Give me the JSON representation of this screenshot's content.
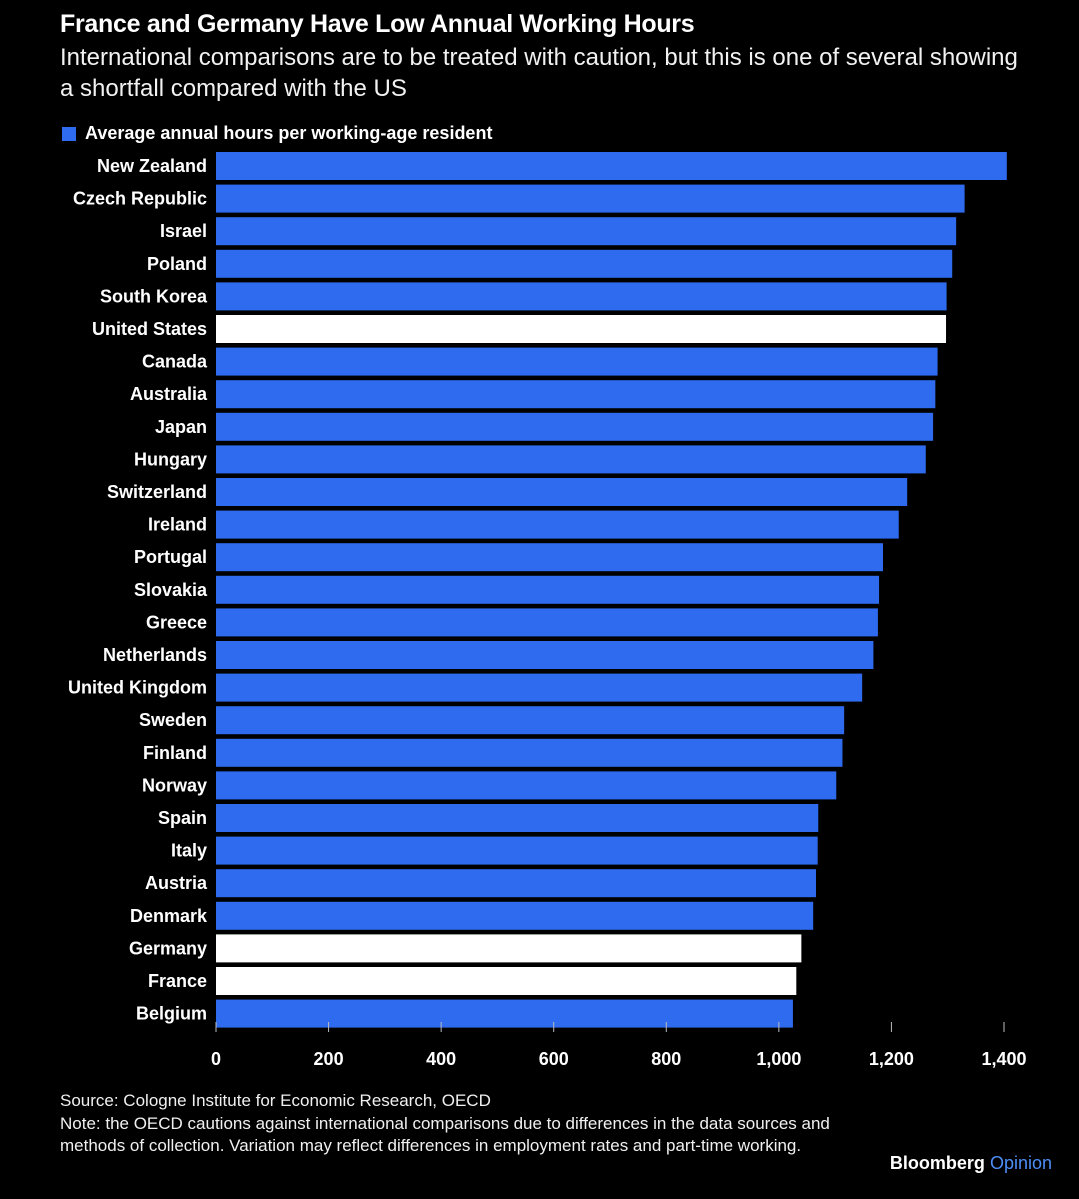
{
  "title": "France and Germany Have Low Annual Working Hours",
  "subtitle": "International comparisons are to be treated with caution, but this is one of several showing a shortfall compared with the US",
  "legend": {
    "label": "Average annual hours per working-age resident"
  },
  "colors": {
    "bar": "#2f6bef",
    "highlight": "#ffffff",
    "background": "#000000"
  },
  "chart_data": {
    "type": "bar",
    "orientation": "horizontal",
    "categories": [
      "New Zealand",
      "Czech Republic",
      "Israel",
      "Poland",
      "South Korea",
      "United States",
      "Canada",
      "Australia",
      "Japan",
      "Hungary",
      "Switzerland",
      "Ireland",
      "Portugal",
      "Slovakia",
      "Greece",
      "Netherlands",
      "United Kingdom",
      "Sweden",
      "Finland",
      "Norway",
      "Spain",
      "Italy",
      "Austria",
      "Denmark",
      "Germany",
      "France",
      "Belgium"
    ],
    "series": [
      {
        "name": "Average annual hours per working-age resident",
        "values": [
          1405,
          1330,
          1315,
          1308,
          1298,
          1297,
          1282,
          1278,
          1274,
          1261,
          1228,
          1213,
          1185,
          1178,
          1176,
          1168,
          1148,
          1116,
          1113,
          1102,
          1070,
          1069,
          1066,
          1061,
          1040,
          1031,
          1025
        ]
      }
    ],
    "highlighted": [
      "United States",
      "Germany",
      "France"
    ],
    "xlim": [
      0,
      1400
    ],
    "xticks": [
      "0",
      "200",
      "400",
      "600",
      "800",
      "1,000",
      "1,200",
      "1,400"
    ],
    "xlabel": "",
    "ylabel": ""
  },
  "footer": {
    "source": "Source: Cologne Institute for Economic Research, OECD",
    "note": "Note: the OECD cautions against international comparisons due to differences in the data sources and methods of collection. Variation may reflect differences in employment rates and part-time working."
  },
  "brand": {
    "name": "Bloomberg",
    "sub": "Opinion"
  }
}
